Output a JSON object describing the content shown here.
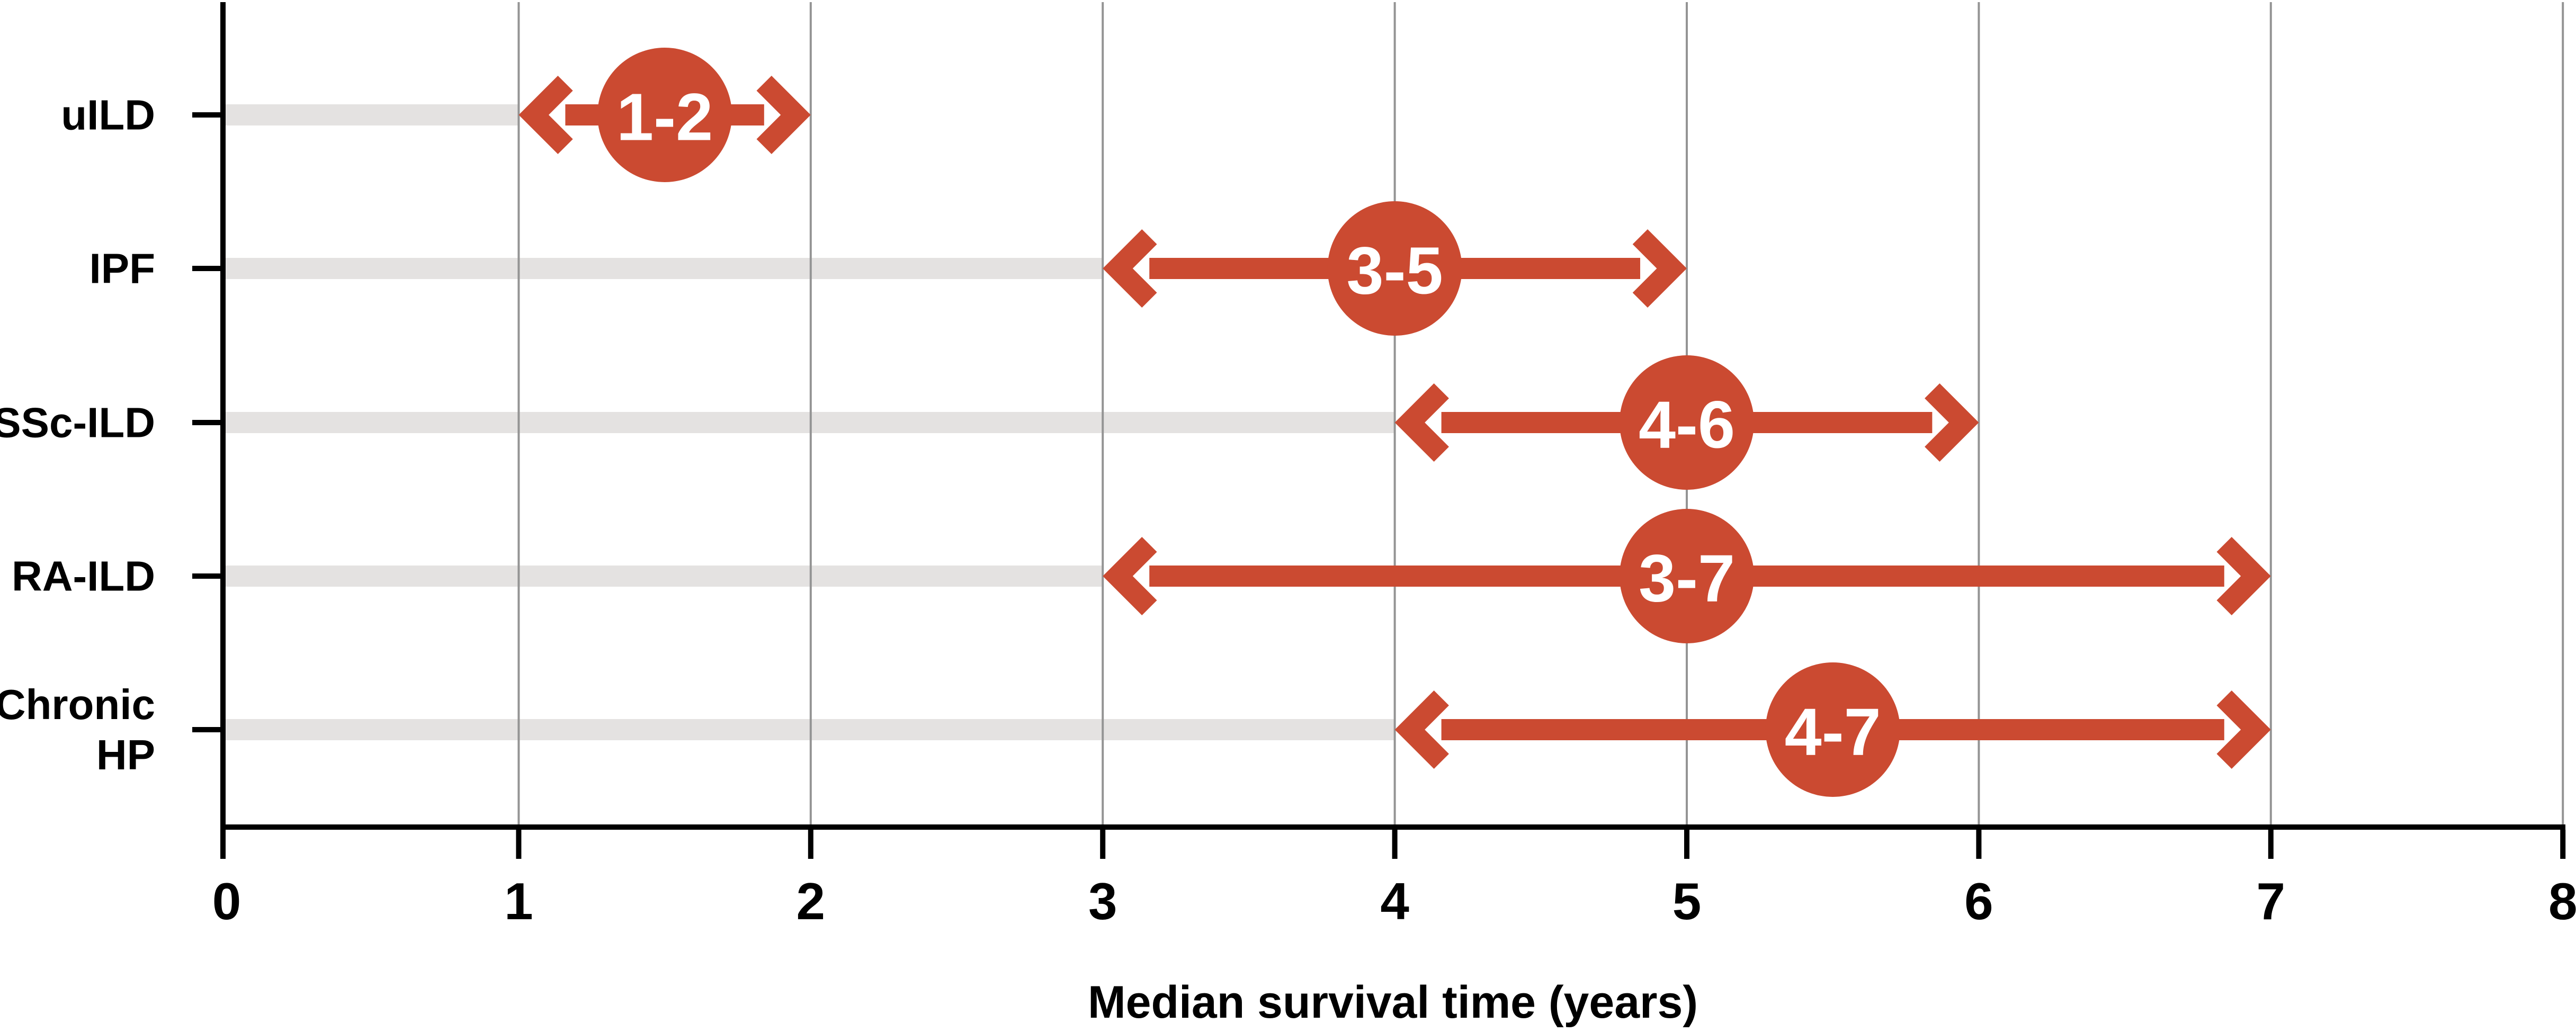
{
  "chart_data": {
    "type": "range-arrow",
    "xlabel": "Median survival time (years)",
    "xlim": [
      0,
      8
    ],
    "xticks": [
      "0",
      "1",
      "2",
      "3",
      "4",
      "5",
      "6",
      "7",
      "8"
    ],
    "grid": true,
    "legend": false,
    "categories": [
      "uILD",
      "IPF",
      "SSc-ILD",
      "RA-ILD",
      "Chronic HP"
    ],
    "series": [
      {
        "category": "uILD",
        "range_label": "1-2",
        "min": 1,
        "max": 2,
        "midpoint": 1.5
      },
      {
        "category": "IPF",
        "range_label": "3-5",
        "min": 3,
        "max": 5,
        "midpoint": 4
      },
      {
        "category": "SSc-ILD",
        "range_label": "4-6",
        "min": 4,
        "max": 6,
        "midpoint": 5
      },
      {
        "category": "RA-ILD",
        "range_label": "3-7",
        "min": 3,
        "max": 7,
        "midpoint": 5
      },
      {
        "category": "Chronic HP",
        "range_label": "4-7",
        "min": 4,
        "max": 7,
        "midpoint": 5.5
      }
    ],
    "colors": {
      "arrow": "#CB4A31",
      "track": "#E4E2E1",
      "gridline": "#949494",
      "axis": "#000000",
      "range_text": "#FFFFFF",
      "label_text": "#000000"
    }
  }
}
